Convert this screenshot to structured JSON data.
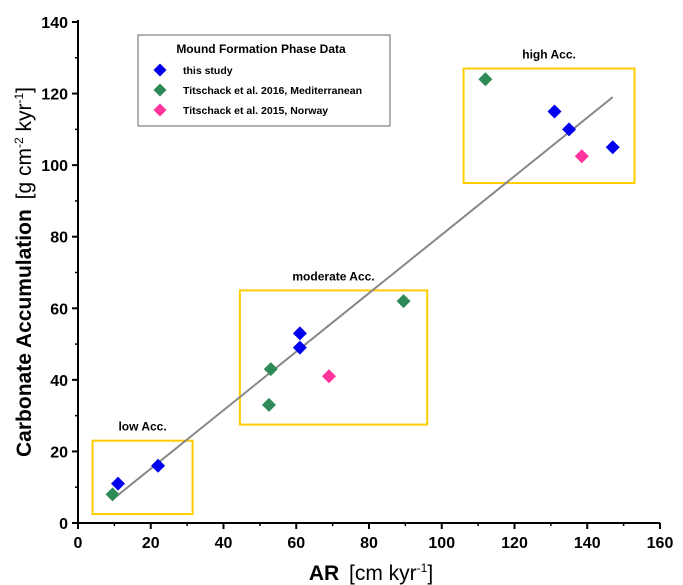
{
  "chart_data": {
    "type": "scatter",
    "xlim": [
      0,
      160
    ],
    "ylim": [
      0,
      140
    ],
    "x_ticks": [
      0,
      20,
      40,
      60,
      80,
      100,
      120,
      140,
      160
    ],
    "y_ticks": [
      0,
      20,
      40,
      60,
      80,
      100,
      120,
      140
    ],
    "xlabel_main": "AR",
    "xlabel_unit_pre": "[cm kyr",
    "xlabel_unit_sup": "-1",
    "xlabel_unit_post": "]",
    "ylabel_main": "Carbonate Accumulation",
    "ylabel_unit_pre": "[g cm",
    "ylabel_unit_sup1": "-2",
    "ylabel_unit_mid": " kyr",
    "ylabel_unit_sup2": "-1",
    "ylabel_unit_post": "]",
    "legend": {
      "title": "Mound Formation Phase Data",
      "placement": "top-left"
    },
    "series": [
      {
        "name": "this study",
        "color": "#0000ee",
        "marker": "diamond",
        "points": [
          [
            11,
            11
          ],
          [
            22,
            16
          ],
          [
            61,
            53
          ],
          [
            61,
            49
          ],
          [
            131,
            115
          ],
          [
            135,
            110
          ],
          [
            147,
            105
          ]
        ]
      },
      {
        "name": "Titschack et al. 2016, Mediterranean",
        "color": "#2e8b57",
        "marker": "diamond",
        "points": [
          [
            9.5,
            8
          ],
          [
            53,
            43
          ],
          [
            52.5,
            33
          ],
          [
            89.5,
            62
          ],
          [
            112,
            124
          ]
        ]
      },
      {
        "name": "Titschack et al. 2015, Norway",
        "color": "#ff3399",
        "marker": "diamond",
        "points": [
          [
            69,
            41
          ],
          [
            138.5,
            102.5
          ]
        ]
      }
    ],
    "trendline": {
      "color": "#888888",
      "from": [
        10,
        7
      ],
      "to": [
        147,
        119
      ]
    },
    "regions": [
      {
        "label": "low Acc.",
        "color": "#ffcc00",
        "x0": 4,
        "x1": 31.5,
        "y0": 2.5,
        "y1": 23
      },
      {
        "label": "moderate Acc.",
        "color": "#ffcc00",
        "x0": 44.5,
        "x1": 96,
        "y0": 27.5,
        "y1": 65
      },
      {
        "label": "high Acc.",
        "color": "#ffcc00",
        "x0": 106,
        "x1": 153,
        "y0": 95,
        "y1": 127
      }
    ]
  }
}
